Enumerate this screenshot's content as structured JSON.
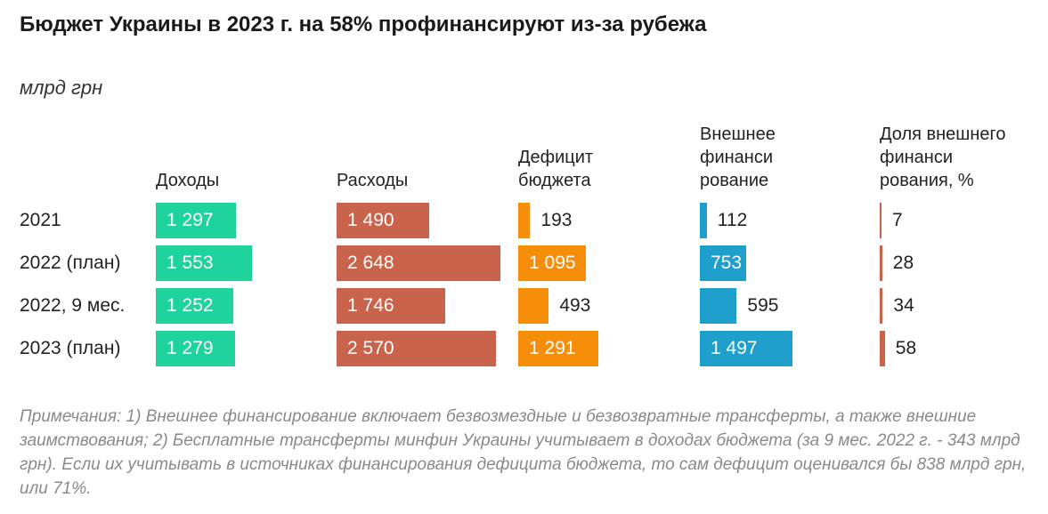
{
  "header": {
    "title": "Бюджет Украины в 2023 г. на 58% профинансируют из-за рубежа",
    "subtitle": "млрд грн"
  },
  "footer": {
    "note": "Примечания: 1) Внешнее финансирование включает безвозмездные и безвозвратные трансферты, а также внешние заимствования; 2) Бесплатные трансферты минфин Украины учитывает в доходах бюджета (за 9 мес. 2022 г. - 343 млрд грн). Если их учитывать в источниках финансирования дефицита бюджета, то сам дефицит оценивался бы 838 млрд грн, или 71%."
  },
  "colors": {
    "income": "#1ed49c",
    "expenses": "#c9634b",
    "deficit": "#f78e09",
    "external": "#1e9fcc",
    "share": "#c9634b"
  },
  "chart_data": {
    "type": "table",
    "title": "Бюджет Украины в 2023 г. на 58% профинансируют из-за рубежа",
    "units": "млрд грн",
    "categories": [
      "2021",
      "2022 (план)",
      "2022, 9 мес.",
      "2023 (план)"
    ],
    "series": [
      {
        "name": "Доходы",
        "header_lines": [
          "Доходы"
        ],
        "values": [
          1297,
          1553,
          1252,
          1279
        ],
        "labels": [
          "1 297",
          "1 553",
          "1 252",
          "1 279"
        ]
      },
      {
        "name": "Расходы",
        "header_lines": [
          "Расходы"
        ],
        "values": [
          1490,
          2648,
          1746,
          2570
        ],
        "labels": [
          "1 490",
          "2 648",
          "1 746",
          "2 570"
        ]
      },
      {
        "name": "Дефицит бюджета",
        "header_lines": [
          "Дефицит",
          "бюджета"
        ],
        "values": [
          193,
          1095,
          493,
          1291
        ],
        "labels": [
          "193",
          "1 095",
          "493",
          "1 291"
        ]
      },
      {
        "name": "Внешнее финансирование",
        "header_lines": [
          "Внешнее",
          "финанси",
          "рование"
        ],
        "values": [
          112,
          753,
          595,
          1497
        ],
        "labels": [
          "112",
          "753",
          "595",
          "1 497"
        ]
      },
      {
        "name": "Доля внешнего финансирования, %",
        "header_lines": [
          "Доля внешнего",
          "финанси",
          "рования, %"
        ],
        "values": [
          7,
          28,
          34,
          58
        ],
        "labels": [
          "7",
          "28",
          "34",
          "58"
        ]
      }
    ]
  }
}
